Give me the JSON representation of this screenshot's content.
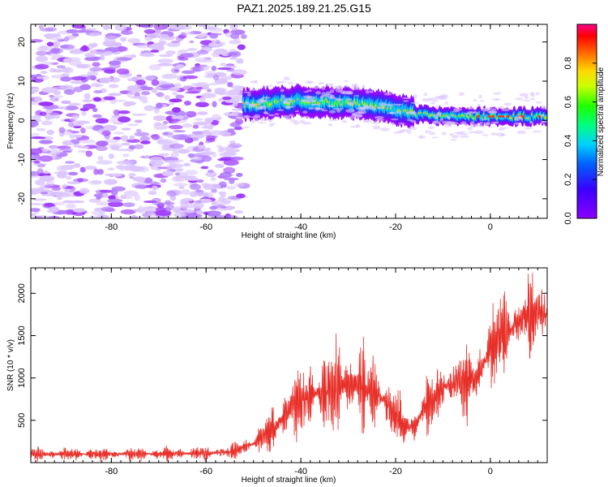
{
  "title": "PAZ1.2025.189.21.25.G15",
  "colors": {
    "snr_line": "#e8302a",
    "spec_dense": "#9b34ff",
    "spec_light": "#dcc6ff"
  },
  "chart_data": [
    {
      "type": "heatmap",
      "xlabel": "Height of straight line (km)",
      "ylabel": "Frequency (Hz)",
      "xlim": [
        -97,
        12
      ],
      "ylim": [
        -25,
        24.5
      ],
      "xticks": [
        -80,
        -60,
        -40,
        -20,
        0
      ],
      "yticks": [
        -20,
        -10,
        0,
        10,
        20
      ],
      "colorbar": {
        "label": "Normalized spectral amplitude",
        "range": [
          0,
          1
        ],
        "ticks": [
          0.0,
          0.2,
          0.4,
          0.6,
          0.8
        ],
        "colormap": "rainbow-purple-to-magenta"
      },
      "regions": [
        {
          "name": "noise",
          "x_range": [
            -97,
            -52
          ],
          "freq_range": [
            -25,
            24.5
          ],
          "amplitude": 0.1
        },
        {
          "name": "signal",
          "x_range": [
            -52,
            12
          ],
          "center_freq": [
            [
              -52,
              4
            ],
            [
              -40,
              5
            ],
            [
              -30,
              4.5
            ],
            [
              -20,
              3
            ],
            [
              -15,
              1.5
            ],
            [
              -10,
              1
            ],
            [
              0,
              1
            ],
            [
              12,
              1
            ]
          ],
          "amplitude_max": 0.95
        }
      ]
    },
    {
      "type": "line",
      "xlabel": "Height of straight line (km)",
      "ylabel": "SNR (10 * v/v)",
      "xlim": [
        -97,
        12
      ],
      "ylim": [
        0,
        2300
      ],
      "xticks": [
        -80,
        -60,
        -40,
        -20,
        0
      ],
      "yticks": [
        500,
        1000,
        1500,
        2000
      ],
      "series": [
        {
          "envelope_x": [
            -97,
            -80,
            -60,
            -55,
            -50,
            -45,
            -42,
            -38,
            -34,
            -30,
            -26,
            -22,
            -20,
            -18,
            -16,
            -14,
            -10,
            -6,
            -4,
            -2,
            0,
            2,
            4,
            6,
            8,
            10,
            12
          ],
          "envelope_mean": [
            100,
            100,
            110,
            130,
            220,
            450,
            650,
            800,
            880,
            920,
            900,
            700,
            550,
            450,
            400,
            650,
            900,
            950,
            1000,
            1100,
            1350,
            1500,
            1550,
            1650,
            1750,
            1800,
            1750
          ],
          "envelope_amp": [
            80,
            80,
            80,
            90,
            150,
            300,
            450,
            500,
            550,
            600,
            500,
            400,
            350,
            300,
            250,
            350,
            400,
            450,
            500,
            500,
            500,
            500,
            450,
            450,
            500,
            450,
            300
          ]
        }
      ]
    }
  ]
}
